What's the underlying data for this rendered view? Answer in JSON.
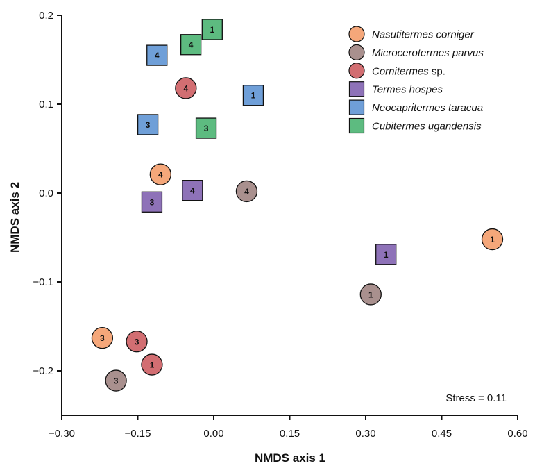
{
  "chart_data": {
    "type": "scatter",
    "xlabel": "NMDS axis 1",
    "ylabel": "NMDS axis 2",
    "xlim": [
      -0.3,
      0.6
    ],
    "ylim": [
      -0.25,
      0.2
    ],
    "xticks": [
      -0.3,
      -0.15,
      0.0,
      0.15,
      0.3,
      0.45,
      0.6
    ],
    "xtick_labels": [
      "−0.30",
      "−0.15",
      "0.00",
      "0.15",
      "0.30",
      "0.45",
      "0.60"
    ],
    "yticks": [
      -0.2,
      -0.1,
      0.0,
      0.1,
      0.2
    ],
    "ytick_labels": [
      "−0.2",
      "−0.1",
      "0.0",
      "0.1",
      "0.2"
    ],
    "grid": false,
    "legend_position": "top-right",
    "annotation": "Stress = 0.11",
    "series": [
      {
        "name": "Nasutitermes corniger",
        "legend": {
          "italic": "Nasutitermes corniger",
          "suffix": ""
        },
        "marker": "circle",
        "color": "#F5A77A",
        "points": [
          {
            "x": 0.55,
            "y": -0.052,
            "label": "1"
          },
          {
            "x": -0.22,
            "y": -0.163,
            "label": "3"
          },
          {
            "x": -0.105,
            "y": 0.021,
            "label": "4"
          }
        ]
      },
      {
        "name": "Microcerotermes parvus",
        "legend": {
          "italic": "Microcerotermes parvus",
          "suffix": ""
        },
        "marker": "circle",
        "color": "#A9908E",
        "points": [
          {
            "x": 0.31,
            "y": -0.114,
            "label": "1"
          },
          {
            "x": -0.193,
            "y": -0.211,
            "label": "3"
          },
          {
            "x": 0.065,
            "y": 0.002,
            "label": "4"
          }
        ]
      },
      {
        "name": "Cornitermes sp.",
        "legend": {
          "italic": "Cornitermes",
          "suffix": " sp."
        },
        "marker": "circle",
        "color": "#D26E72",
        "points": [
          {
            "x": -0.122,
            "y": -0.193,
            "label": "1"
          },
          {
            "x": -0.152,
            "y": -0.167,
            "label": "3"
          },
          {
            "x": -0.055,
            "y": 0.118,
            "label": "4"
          }
        ]
      },
      {
        "name": "Termes hospes",
        "legend": {
          "italic": "Termes hospes",
          "suffix": ""
        },
        "marker": "square",
        "color": "#8E72B8",
        "points": [
          {
            "x": 0.34,
            "y": -0.069,
            "label": "1"
          },
          {
            "x": -0.122,
            "y": -0.01,
            "label": "3"
          },
          {
            "x": -0.042,
            "y": 0.003,
            "label": "4"
          }
        ]
      },
      {
        "name": "Neocapritermes taracua",
        "legend": {
          "italic": "Neocapritermes taracua",
          "suffix": ""
        },
        "marker": "square",
        "color": "#6F9FD8",
        "points": [
          {
            "x": 0.078,
            "y": 0.11,
            "label": "1"
          },
          {
            "x": -0.13,
            "y": 0.077,
            "label": "3"
          },
          {
            "x": -0.112,
            "y": 0.155,
            "label": "4"
          }
        ]
      },
      {
        "name": "Cubitermes ugandensis",
        "legend": {
          "italic": "Cubitermes ugandensis",
          "suffix": ""
        },
        "marker": "square",
        "color": "#5DBB80",
        "points": [
          {
            "x": -0.003,
            "y": 0.184,
            "label": "1"
          },
          {
            "x": -0.015,
            "y": 0.073,
            "label": "3"
          },
          {
            "x": -0.045,
            "y": 0.167,
            "label": "4"
          }
        ]
      }
    ]
  }
}
